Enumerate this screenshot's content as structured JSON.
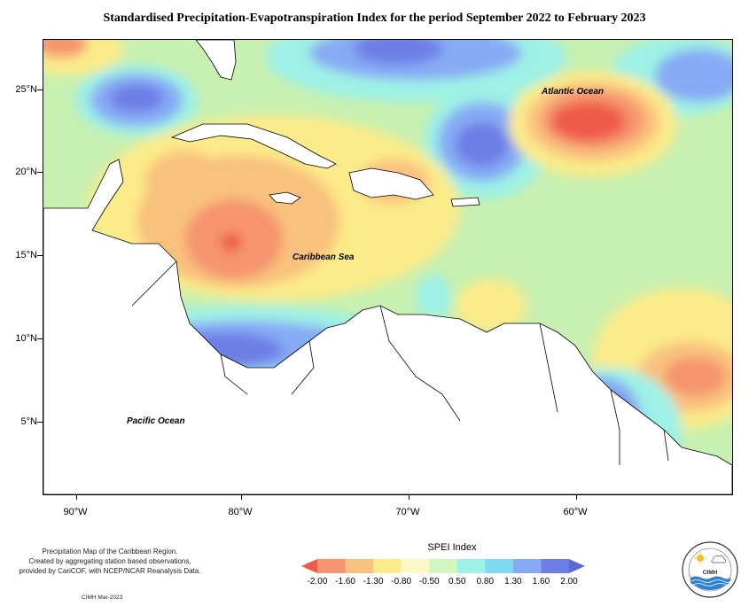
{
  "title": "Standardised Precipitation-Evapotranspiration Index for the period September 2022 to February 2023",
  "map": {
    "background_color": "#c8f0b0",
    "land_color": "#ffffff",
    "labels": {
      "atlantic": "Atlantic Ocean",
      "caribbean": "Caribbean Sea",
      "pacific": "Pacific Ocean"
    },
    "latitude_labels": [
      "25°N",
      "20°N",
      "15°N",
      "10°N",
      "5°N"
    ],
    "longitude_labels": [
      "90°W",
      "80°W",
      "70°W",
      "60°W"
    ]
  },
  "credits": {
    "line1": "Precipitation Map of the Caribbean Region.",
    "line2": "Created by aggregating station based observations,",
    "line3": "provided by CariCOF, with NCEP/NCAR Reanalysis Data.",
    "date": "CIMH Mar-2023"
  },
  "legend": {
    "title": "SPEI Index",
    "labels": [
      "-2.00",
      "-1.60",
      "-1.30",
      "-0.80",
      "-0.50",
      "0.50",
      "0.80",
      "1.30",
      "1.60",
      "2.00"
    ],
    "colors": [
      "#f05a4a",
      "#f5946e",
      "#f9c17e",
      "#fbeb8a",
      "#fdf8c8",
      "#d2f6c0",
      "#9ef1e6",
      "#7fd9f0",
      "#87aaf5",
      "#6d7fe6",
      "#5b6ad0"
    ]
  },
  "logo": {
    "text": "CIMH"
  }
}
